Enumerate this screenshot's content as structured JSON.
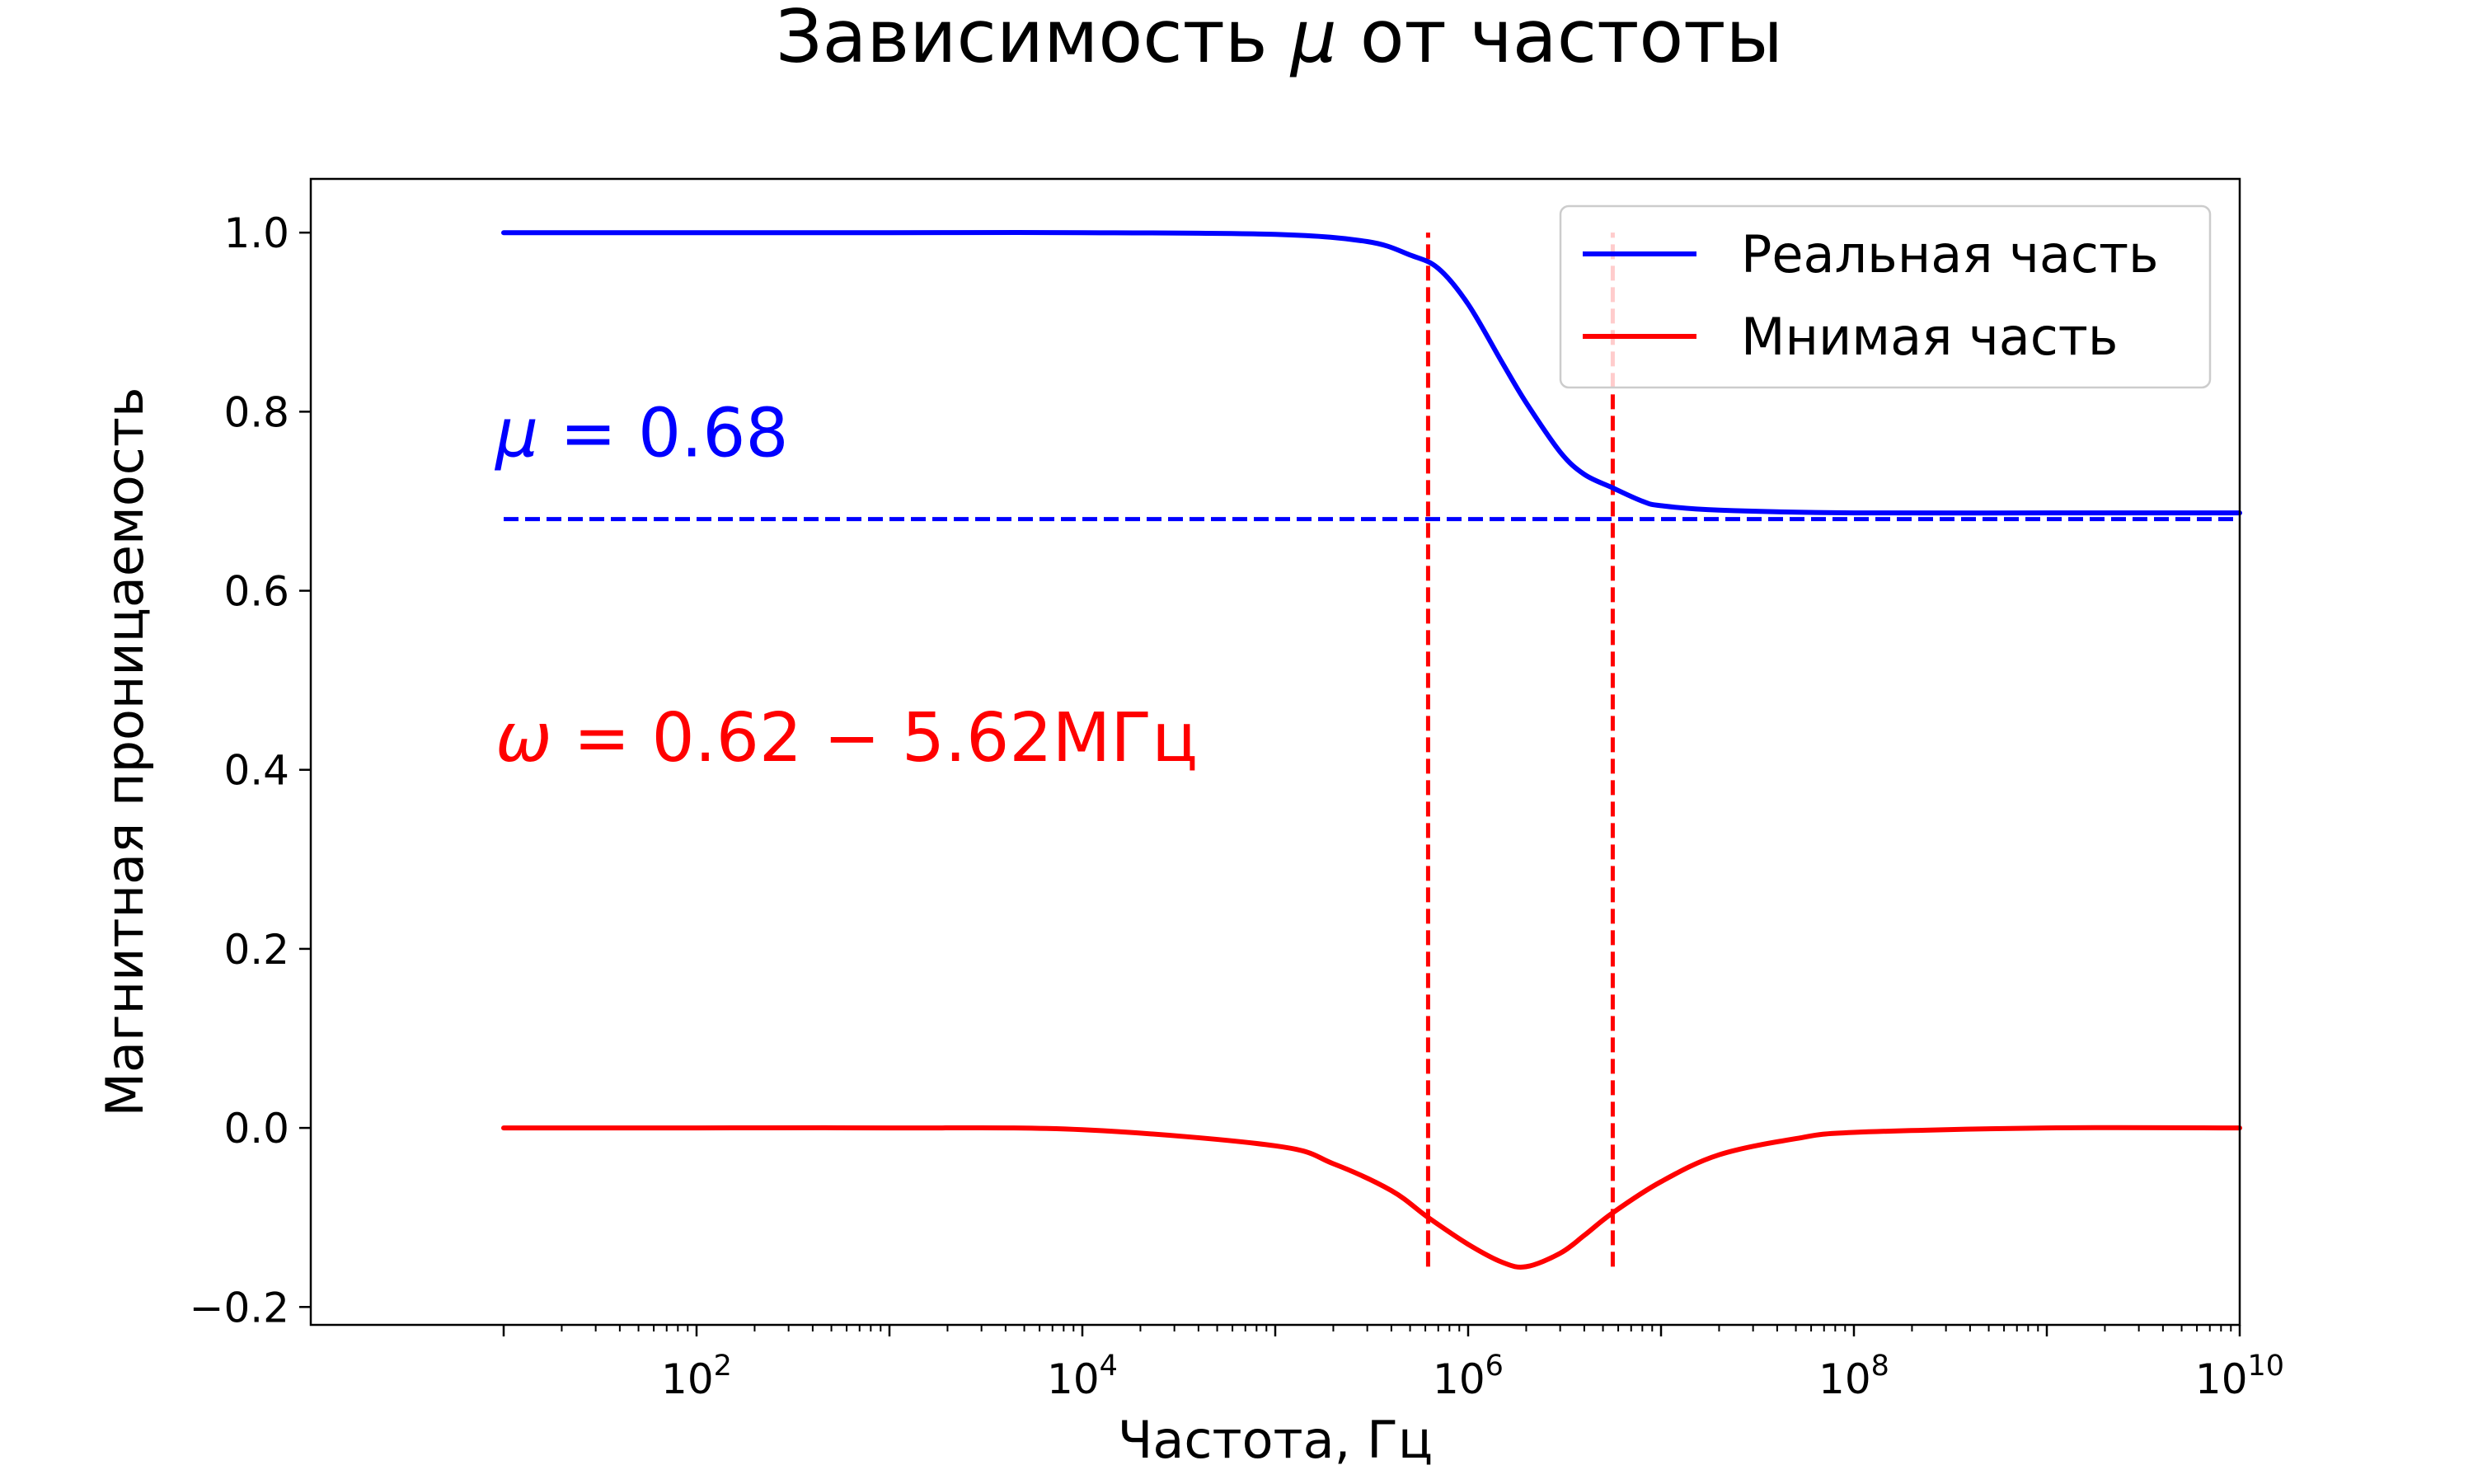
{
  "chart_data": {
    "type": "line",
    "title": "Зависимость μ от частоты",
    "xlabel": "Частота, Гц",
    "ylabel": "Магнитная проницаемость",
    "xscale": "log",
    "xlim": [
      1.0,
      10000000000.0
    ],
    "ylim": [
      -0.22,
      1.06
    ],
    "x_ticks": [
      {
        "value": 100,
        "base": "10",
        "exp": "2"
      },
      {
        "value": 10000,
        "base": "10",
        "exp": "4"
      },
      {
        "value": 1000000,
        "base": "10",
        "exp": "6"
      },
      {
        "value": 100000000,
        "base": "10",
        "exp": "8"
      },
      {
        "value": 10000000000,
        "base": "10",
        "exp": "10"
      }
    ],
    "y_ticks": [
      {
        "value": -0.2,
        "label": "−0.2"
      },
      {
        "value": 0.0,
        "label": "0.0"
      },
      {
        "value": 0.2,
        "label": "0.2"
      },
      {
        "value": 0.4,
        "label": "0.4"
      },
      {
        "value": 0.6,
        "label": "0.6"
      },
      {
        "value": 0.8,
        "label": "0.8"
      },
      {
        "value": 1.0,
        "label": "1.0"
      }
    ],
    "legend_position": "top-right",
    "series": [
      {
        "name": "Реальная часть",
        "color": "#0000ff",
        "points": [
          [
            10.0,
            1.0
          ],
          [
            100.0,
            1.0
          ],
          [
            1000.0,
            1.0
          ],
          [
            10000.0,
            1.0
          ],
          [
            100000.0,
            0.998
          ],
          [
            300000.0,
            0.99
          ],
          [
            500000.0,
            0.975
          ],
          [
            700000.0,
            0.96
          ],
          [
            1000000.0,
            0.92
          ],
          [
            1500000.0,
            0.855
          ],
          [
            2000000.0,
            0.81
          ],
          [
            3000000.0,
            0.755
          ],
          [
            4000000.0,
            0.73
          ],
          [
            5600000.0,
            0.715
          ],
          [
            8000000.0,
            0.7
          ],
          [
            10000000.0,
            0.695
          ],
          [
            20000000.0,
            0.69
          ],
          [
            100000000.0,
            0.687
          ],
          [
            1000000000.0,
            0.687
          ],
          [
            10000000000.0,
            0.687
          ]
        ]
      },
      {
        "name": "Мнимая часть",
        "color": "#ff0000",
        "points": [
          [
            10.0,
            0.0
          ],
          [
            100.0,
            0.0
          ],
          [
            1000.0,
            0.0
          ],
          [
            10000.0,
            -0.002
          ],
          [
            100000.0,
            -0.02
          ],
          [
            200000.0,
            -0.04
          ],
          [
            400000.0,
            -0.07
          ],
          [
            620000.0,
            -0.1
          ],
          [
            1000000.0,
            -0.13
          ],
          [
            1500000.0,
            -0.15
          ],
          [
            2000000.0,
            -0.155
          ],
          [
            3000000.0,
            -0.14
          ],
          [
            4000000.0,
            -0.12
          ],
          [
            5600000.0,
            -0.095
          ],
          [
            10000000.0,
            -0.06
          ],
          [
            20000000.0,
            -0.03
          ],
          [
            50000000.0,
            -0.012
          ],
          [
            100000000.0,
            -0.005
          ],
          [
            1000000000.0,
            0.0
          ],
          [
            10000000000.0,
            0.0
          ]
        ]
      }
    ],
    "reference_lines": [
      {
        "orientation": "horizontal",
        "y": 0.68,
        "x_range": [
          10.0,
          10000000000.0
        ],
        "color": "#0000ff",
        "style": "dashed"
      },
      {
        "orientation": "vertical",
        "x": 620000,
        "y_range": [
          -0.155,
          1.0
        ],
        "color": "#ff0000",
        "style": "dashed"
      },
      {
        "orientation": "vertical",
        "x": 5620000,
        "y_range": [
          -0.155,
          1.0
        ],
        "color": "#ff0000",
        "style": "dashed"
      }
    ],
    "annotations": [
      {
        "id": "mu",
        "sym": "μ",
        "rest": " = 0.68",
        "color": "#0000ff",
        "x": 10,
        "y": 0.75
      },
      {
        "id": "omega",
        "sym": "ω",
        "rest": " = 0.62 − 5.62МГц",
        "color": "#ff0000",
        "x": 10,
        "y": 0.41
      }
    ]
  }
}
